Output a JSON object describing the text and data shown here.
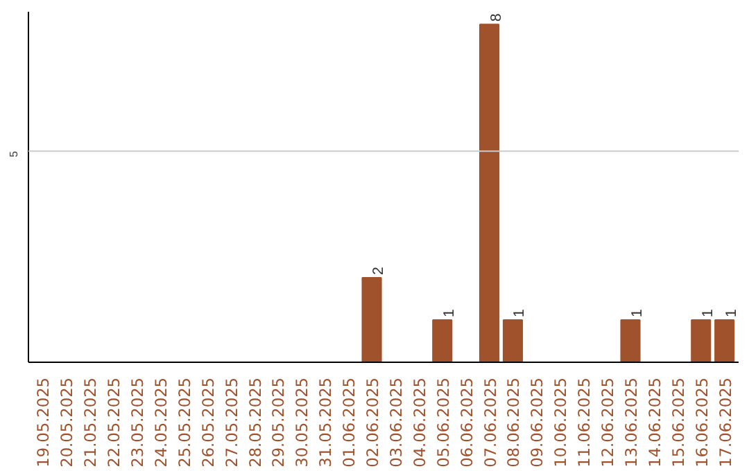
{
  "chart_data": {
    "type": "bar",
    "categories": [
      "19.05.2025",
      "20.05.2025",
      "21.05.2025",
      "22.05.2025",
      "23.05.2025",
      "24.05.2025",
      "25.05.2025",
      "26.05.2025",
      "27.05.2025",
      "28.05.2025",
      "29.05.2025",
      "30.05.2025",
      "31.05.2025",
      "01.06.2025",
      "02.06.2025",
      "03.06.2025",
      "04.06.2025",
      "05.06.2025",
      "06.06.2025",
      "07.06.2025",
      "08.06.2025",
      "09.06.2025",
      "10.06.2025",
      "11.06.2025",
      "12.06.2025",
      "13.06.2025",
      "14.06.2025",
      "15.06.2025",
      "16.06.2025",
      "17.06.2025"
    ],
    "values": [
      null,
      null,
      null,
      null,
      null,
      null,
      null,
      null,
      null,
      null,
      null,
      null,
      null,
      null,
      2,
      null,
      null,
      1,
      null,
      8,
      1,
      null,
      null,
      null,
      null,
      1,
      null,
      null,
      1,
      1
    ],
    "data_labels": true,
    "color": "#a0522d",
    "ylim": [
      0,
      8.3
    ],
    "ref_lines": [
      {
        "axis": "y",
        "value": 5,
        "label": "5",
        "color": "#cccccc"
      }
    ]
  }
}
